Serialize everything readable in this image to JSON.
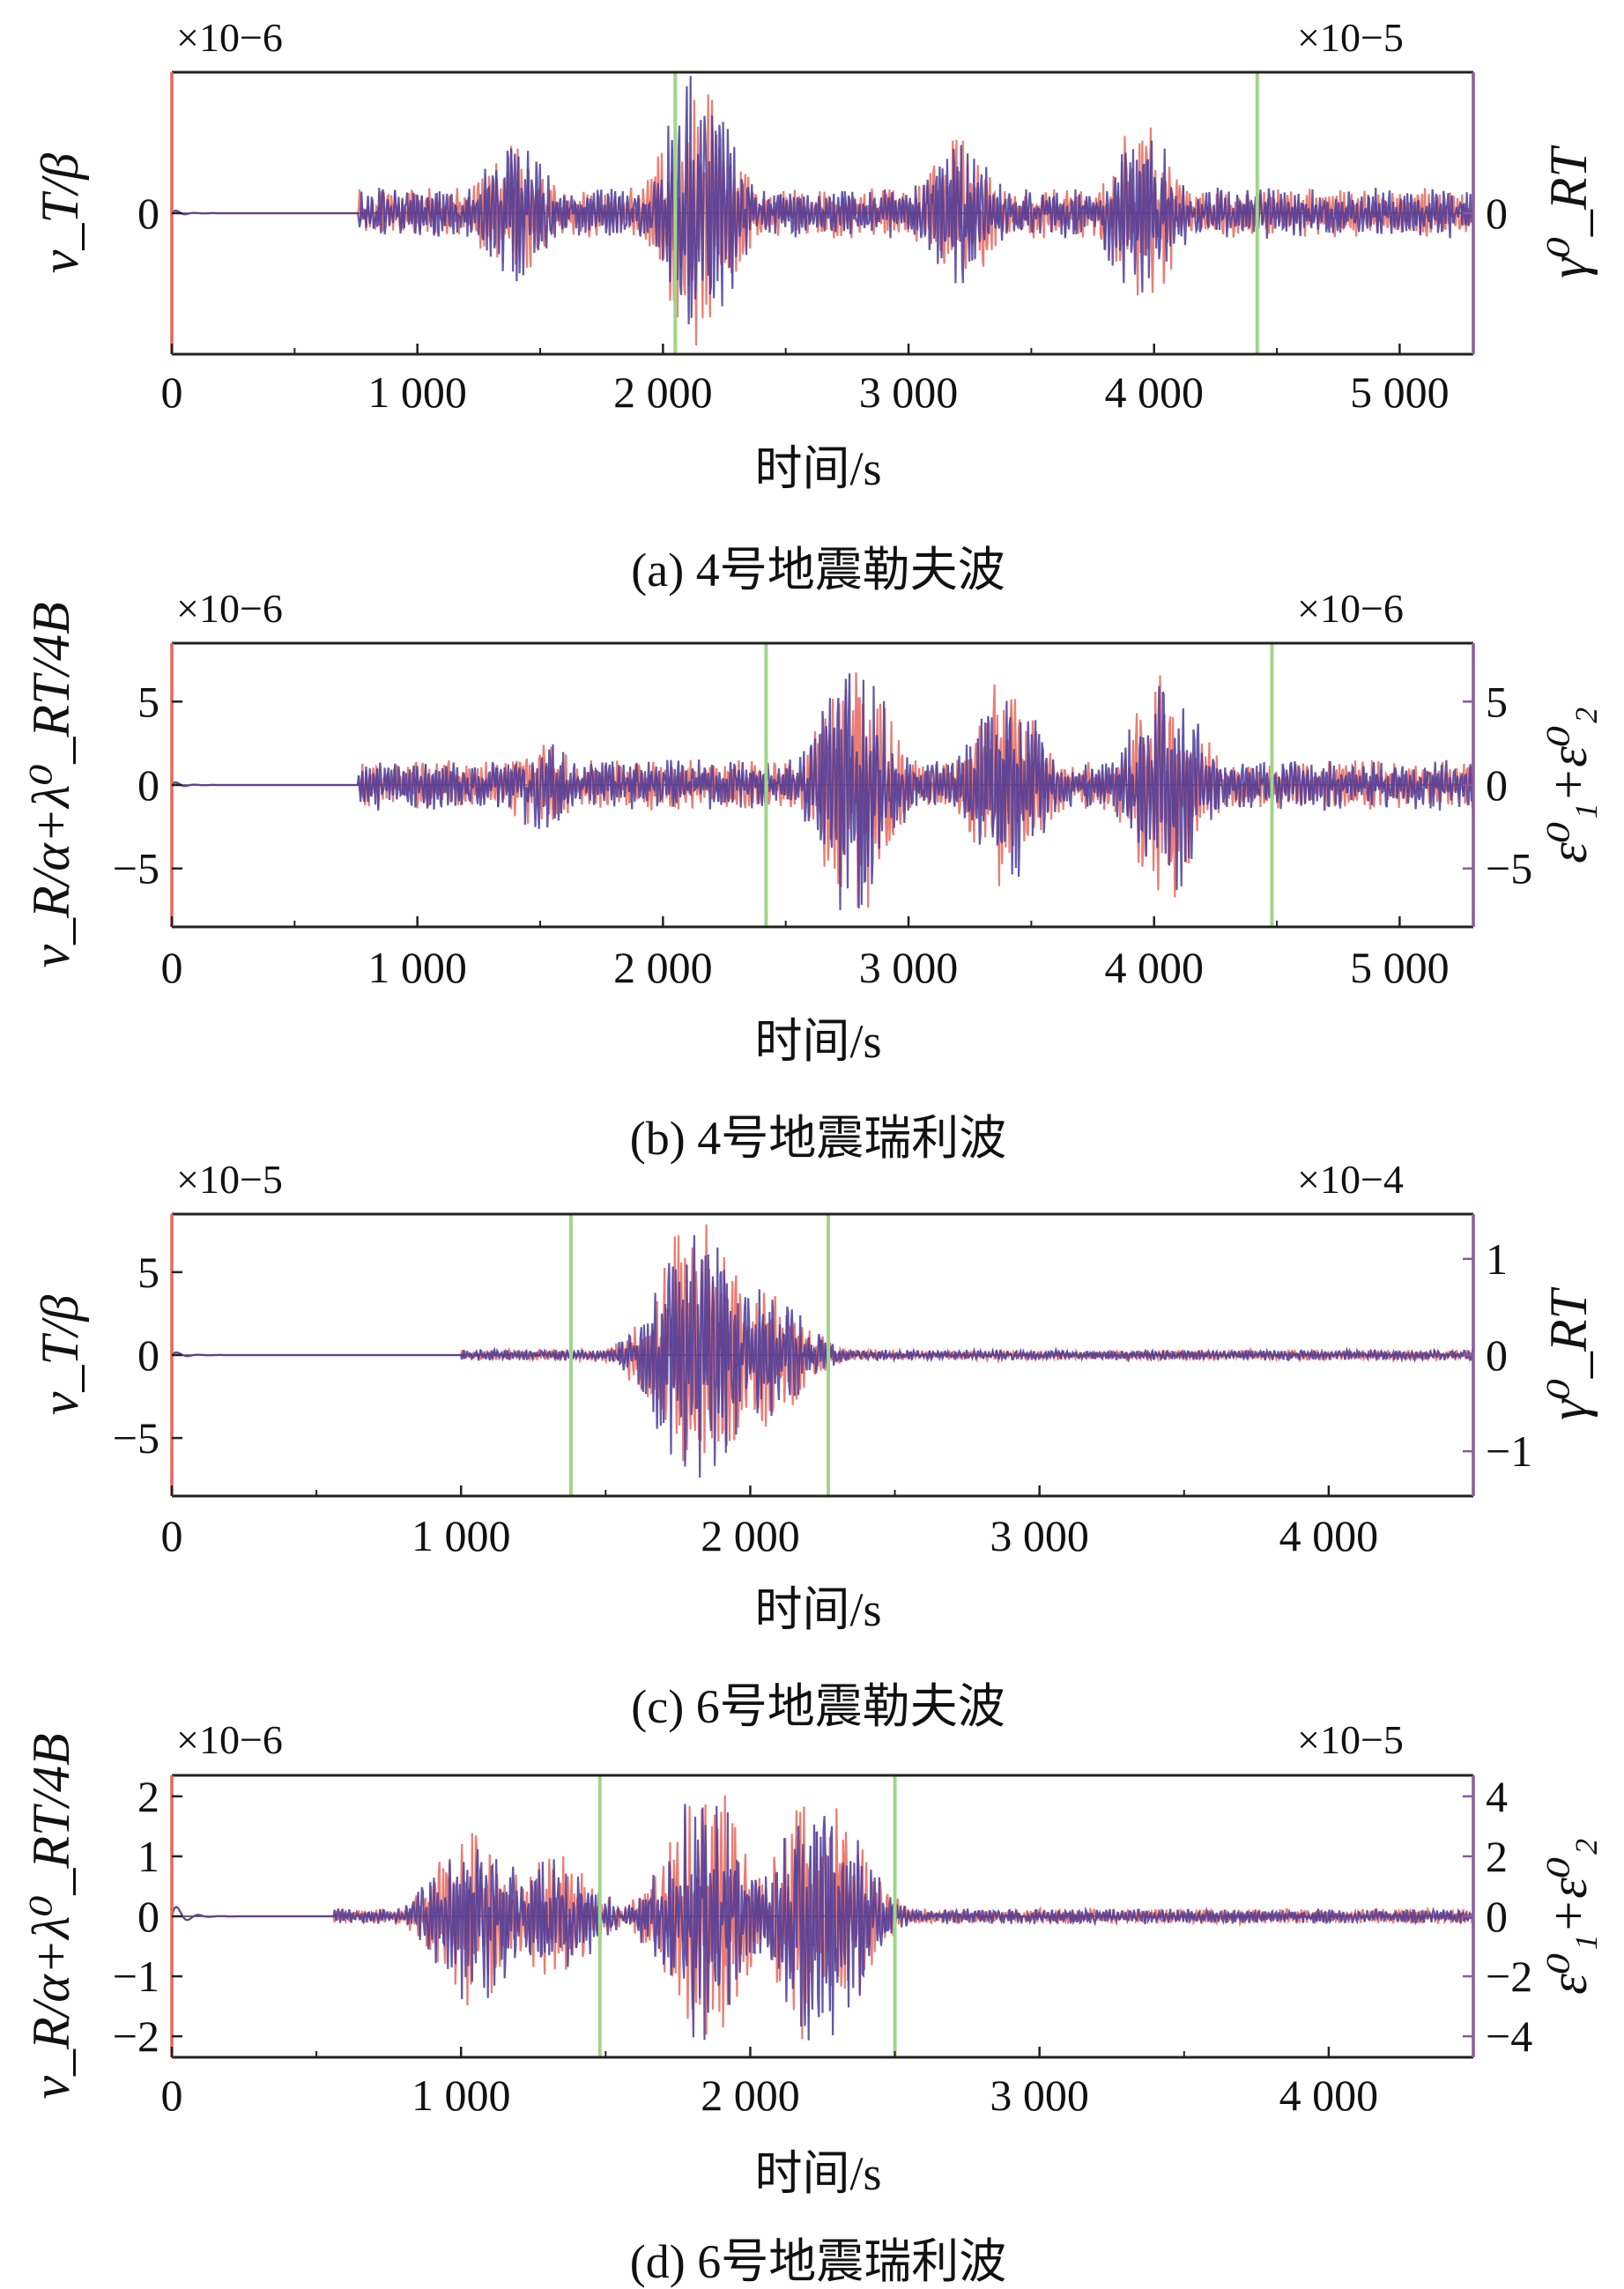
{
  "figure": {
    "colors": {
      "series_a": "#e8665a",
      "series_b": "#4a3a99",
      "marker": "#9fd68a",
      "axis": "#222222",
      "right_axis": "#8a5aa0"
    }
  },
  "chart_data": [
    {
      "type": "line",
      "caption": "(a) 4号地震勒夫波",
      "xlabel": "时间/s",
      "xlim": [
        0,
        5300
      ],
      "xticks": [
        0,
        1000,
        2000,
        3000,
        4000,
        5000
      ],
      "xtick_labels": [
        "0",
        "1 000",
        "2 000",
        "3 000",
        "4 000",
        "5 000"
      ],
      "left_axis": {
        "label": "v_T/β",
        "multiplier": "×10−6",
        "ylim": [
          -8.5,
          8.5
        ],
        "ticks": [
          0
        ],
        "tick_labels": [
          "0"
        ]
      },
      "right_axis": {
        "label": "γ⁰_RT",
        "multiplier": "×10−5",
        "ticks": [
          0
        ],
        "tick_labels": [
          "0"
        ]
      },
      "markers": [
        2050,
        4420
      ],
      "signal_profile": {
        "onset": 760,
        "bursts": [
          [
            1390,
            4.0
          ],
          [
            2150,
            8.0
          ],
          [
            3200,
            4.5
          ],
          [
            3950,
            5.0
          ]
        ],
        "base": 1.4,
        "tail_end": 5300
      }
    },
    {
      "type": "line",
      "caption": "(b) 4号地震瑞利波",
      "xlabel": "时间/s",
      "xlim": [
        0,
        5300
      ],
      "xticks": [
        0,
        1000,
        2000,
        3000,
        4000,
        5000
      ],
      "xtick_labels": [
        "0",
        "1 000",
        "2 000",
        "3 000",
        "4 000",
        "5 000"
      ],
      "left_axis": {
        "label": "v_R/α+λ⁰_RT/4B",
        "multiplier": "×10−6",
        "ylim": [
          -8.5,
          8.5
        ],
        "ticks": [
          5,
          0,
          -5
        ],
        "tick_labels": [
          "5",
          "0",
          "−5"
        ]
      },
      "right_axis": {
        "label": "ε⁰₁+ε⁰₂",
        "multiplier": "×10−6",
        "ticks": [
          5,
          0,
          -5
        ],
        "tick_labels": [
          "5",
          "0",
          "−5"
        ]
      },
      "markers": [
        2420,
        4480
      ],
      "signal_profile": {
        "onset": 760,
        "bursts": [
          [
            1500,
            2.5
          ],
          [
            2780,
            8.0
          ],
          [
            3400,
            6.0
          ],
          [
            4050,
            6.5
          ]
        ],
        "base": 1.4,
        "tail_end": 5300
      }
    },
    {
      "type": "line",
      "caption": "(c) 6号地震勒夫波",
      "xlabel": "时间/s",
      "xlim": [
        0,
        4500
      ],
      "xticks": [
        0,
        1000,
        2000,
        3000,
        4000
      ],
      "xtick_labels": [
        "0",
        "1 000",
        "2 000",
        "3 000",
        "4 000"
      ],
      "left_axis": {
        "label": "v_T/β",
        "multiplier": "×10−5",
        "ylim": [
          -8.5,
          8.5
        ],
        "ticks": [
          5,
          0,
          -5
        ],
        "tick_labels": [
          "5",
          "0",
          "−5"
        ]
      },
      "right_axis": {
        "label": "γ⁰_RT",
        "multiplier": "×10−4",
        "ticks": [
          1,
          0,
          -1
        ],
        "tick_labels": [
          "1",
          "0",
          "−1"
        ]
      },
      "markers": [
        1380,
        2270
      ],
      "signal_profile": {
        "onset": 1000,
        "bursts": [
          [
            1820,
            8.3
          ],
          [
            2050,
            4.0
          ]
        ],
        "base": 0.3,
        "tail_end": 4500
      }
    },
    {
      "type": "line",
      "caption": "(d) 6号地震瑞利波",
      "xlabel": "时间/s",
      "xlim": [
        0,
        4500
      ],
      "xticks": [
        0,
        1000,
        2000,
        3000,
        4000
      ],
      "xtick_labels": [
        "0",
        "1 000",
        "2 000",
        "3 000",
        "4 000"
      ],
      "left_axis": {
        "label": "v_R/α+λ⁰_RT/4B",
        "multiplier": "×10−6",
        "ylim": [
          -2.35,
          2.35
        ],
        "ticks": [
          2,
          1,
          0,
          -1,
          -2
        ],
        "tick_labels": [
          "2",
          "1",
          "0",
          "−1",
          "−2"
        ]
      },
      "right_axis": {
        "label": "ε⁰₁+ε⁰₂",
        "multiplier": "×10−5",
        "ticks": [
          4,
          2,
          0,
          -2,
          -4
        ],
        "tick_labels": [
          "4",
          "2",
          "0",
          "−2",
          "−4"
        ],
        "scale": 0.5
      },
      "markers": [
        1480,
        2500
      ],
      "signal_profile": {
        "onset": 560,
        "bursts": [
          [
            1050,
            1.4
          ],
          [
            1320,
            1.0
          ],
          [
            1850,
            2.1
          ],
          [
            2250,
            2.2
          ]
        ],
        "base": 0.12,
        "tail_end": 4500
      }
    }
  ]
}
